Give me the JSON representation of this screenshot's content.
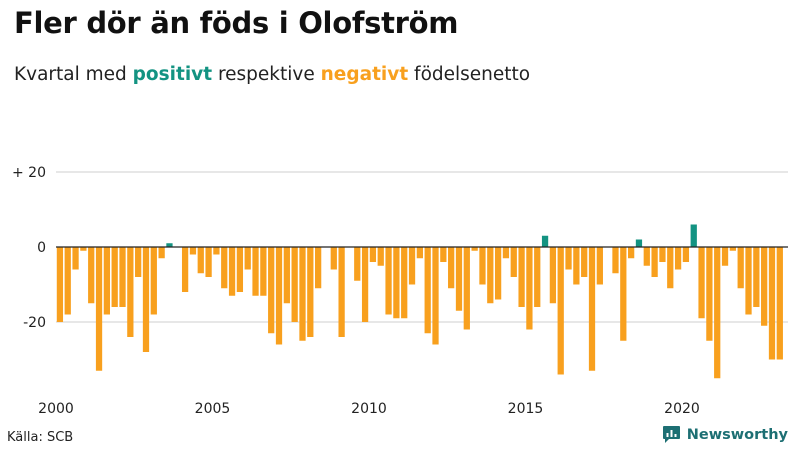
{
  "header": {
    "title": "Fler dör än föds i Olofström",
    "subtitle_pre": "Kvartal med ",
    "subtitle_pos": "positivt",
    "subtitle_mid": " respektive ",
    "subtitle_neg": "negativt",
    "subtitle_post": " födelsenetto"
  },
  "footer": {
    "source": "Källa: SCB",
    "brand": "Newsworthy"
  },
  "colors": {
    "positive": "#139382",
    "negative": "#f8a01e",
    "grid": "#cfcfcf",
    "axis": "#222222",
    "brand": "#1d6f73"
  },
  "chart_data": {
    "type": "bar",
    "title": "Fler dör än föds i Olofström",
    "subtitle": "Kvartal med positivt respektive negativt födelsenetto",
    "xlabel": "",
    "ylabel": "",
    "start_year": 2000,
    "periods_per_year": 4,
    "ylim": [
      -36,
      22
    ],
    "yticks": [
      {
        "value": 20,
        "label": "+ 20"
      },
      {
        "value": 0,
        "label": "0"
      },
      {
        "value": -20,
        "label": "-20"
      }
    ],
    "xticks": [
      {
        "year": 2000,
        "label": "2000"
      },
      {
        "year": 2005,
        "label": "2005"
      },
      {
        "year": 2010,
        "label": "2010"
      },
      {
        "year": 2015,
        "label": "2015"
      },
      {
        "year": 2020,
        "label": "2020"
      }
    ],
    "values": [
      -20,
      -18,
      -6,
      -1,
      -15,
      -33,
      -18,
      -16,
      -16,
      -24,
      -8,
      -28,
      -18,
      -3,
      1,
      0,
      -12,
      -2,
      -7,
      -8,
      -2,
      -11,
      -13,
      -12,
      -6,
      -13,
      -13,
      -23,
      -26,
      -15,
      -20,
      -25,
      -24,
      -11,
      0,
      -6,
      -24,
      0,
      -9,
      -20,
      -4,
      -5,
      -18,
      -19,
      -19,
      -10,
      -3,
      -23,
      -26,
      -4,
      -11,
      -17,
      -22,
      -1,
      -10,
      -15,
      -14,
      -3,
      -8,
      -16,
      -22,
      -16,
      3,
      -15,
      -34,
      -6,
      -10,
      -8,
      -33,
      -10,
      0,
      -7,
      -25,
      -3,
      2,
      -5,
      -8,
      -4,
      -11,
      -6,
      -4,
      6,
      -19,
      -25,
      -35,
      -5,
      -1,
      -11,
      -18,
      -16,
      -21,
      -30,
      -30
    ]
  }
}
